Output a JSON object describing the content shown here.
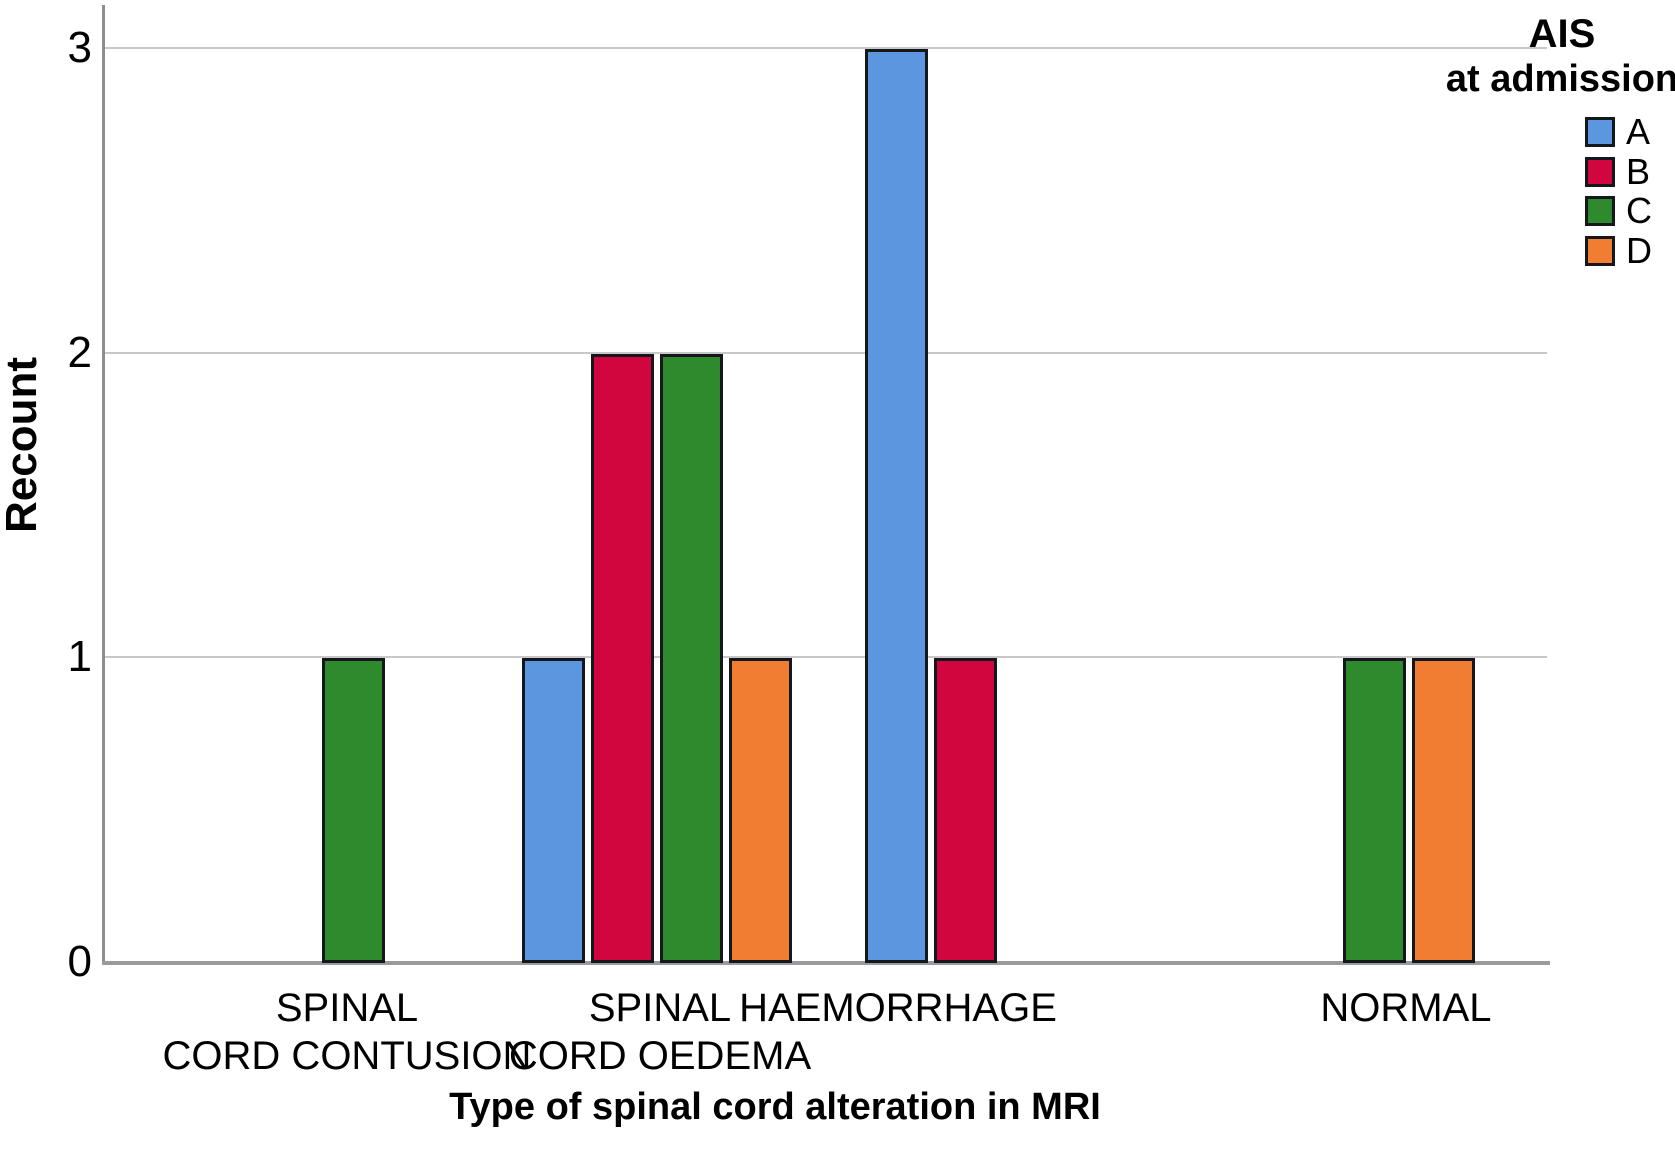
{
  "chart_data": {
    "type": "bar",
    "title": "",
    "xlabel": "Type of spinal cord alteration in MRI",
    "ylabel": "Recount",
    "ylim": [
      0,
      3
    ],
    "yticks": [
      0,
      1,
      2,
      3
    ],
    "grid": "horizontal",
    "legend_position": "top-right",
    "legend_title_lines": [
      "AIS",
      "at admission"
    ],
    "categories": [
      "SPINAL CORD CONTUSION",
      "SPINAL CORD OEDEMA",
      "HAEMORRHAGE",
      "NORMAL"
    ],
    "category_label_lines": [
      [
        "SPINAL",
        "CORD CONTUSION"
      ],
      [
        "SPINAL",
        "CORD OEDEMA"
      ],
      [
        "HAEMORRHAGE"
      ],
      [
        "NORMAL"
      ]
    ],
    "series": [
      {
        "name": "A",
        "color": "#5b96de",
        "values": [
          0,
          1,
          3,
          0
        ]
      },
      {
        "name": "B",
        "color": "#d2063f",
        "values": [
          0,
          2,
          1,
          0
        ]
      },
      {
        "name": "C",
        "color": "#2e8a2c",
        "values": [
          1,
          2,
          0,
          1
        ]
      },
      {
        "name": "D",
        "color": "#f07d32",
        "values": [
          0,
          1,
          0,
          1
        ]
      }
    ],
    "bar_outline_color": "#14171c",
    "axis_color": "#8e8e8e",
    "gridline_color": "#c8c8c8",
    "text_color": "#000000"
  }
}
